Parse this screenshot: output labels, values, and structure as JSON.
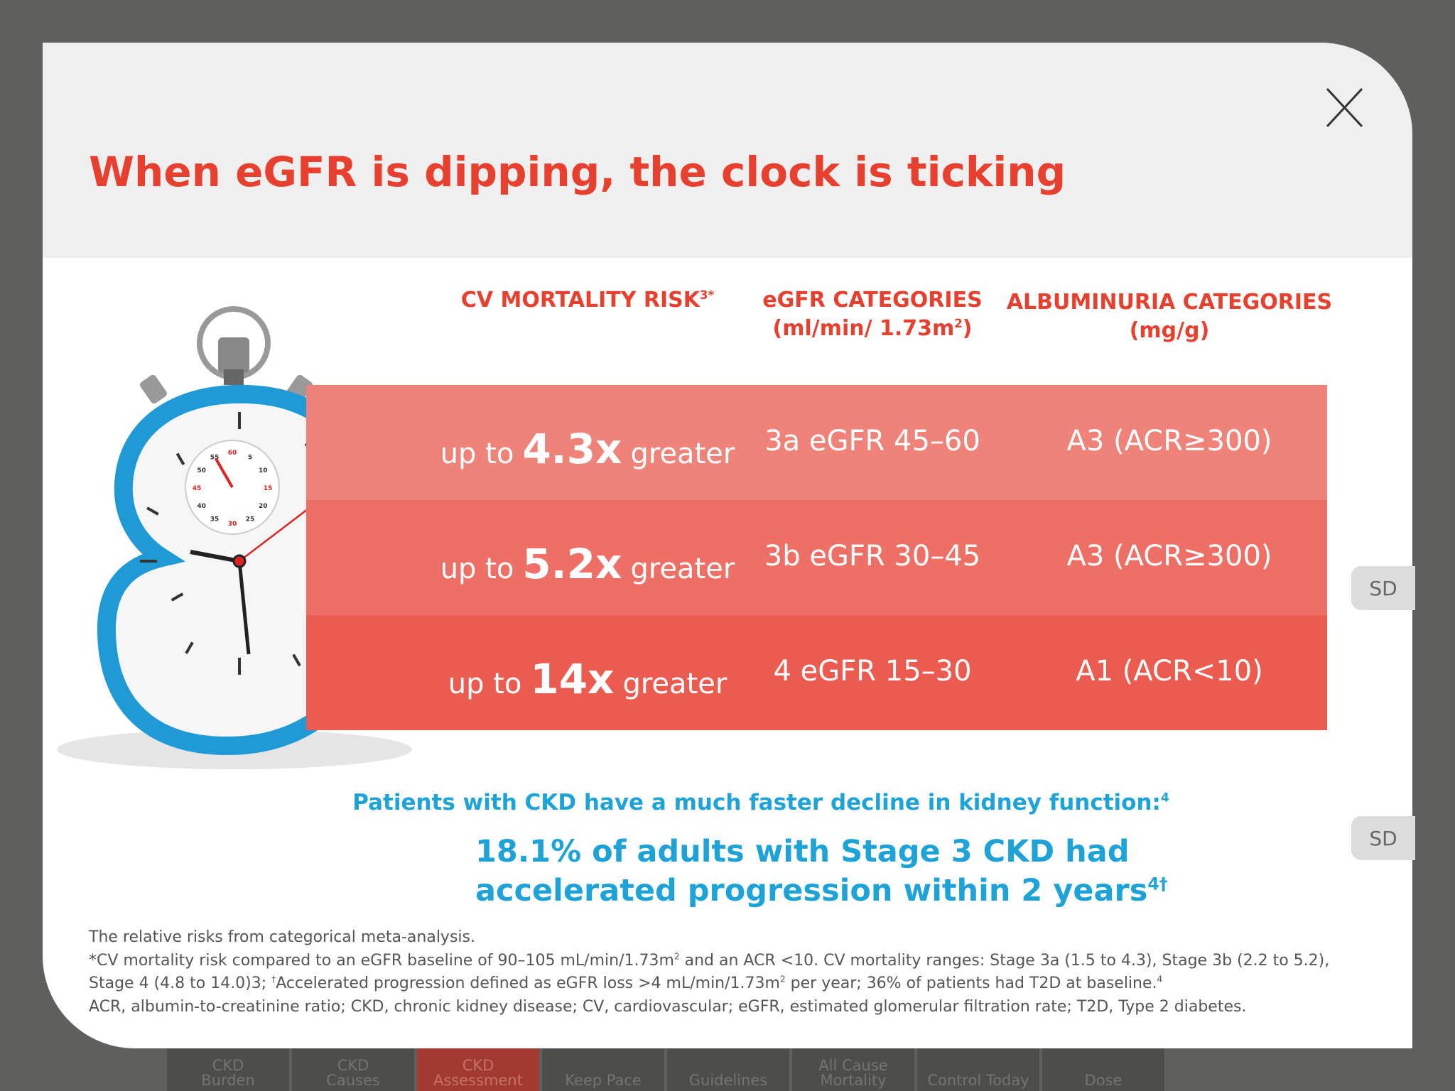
{
  "header": {
    "title": "When eGFR is dipping, the clock is ticking"
  },
  "table": {
    "headers": [
      [
        [
          {
            "text": "CV MORTALITY RISK"
          },
          {
            "sup": "3*"
          }
        ]
      ],
      [
        [
          {
            "text": "eGFR CATEGORIES"
          }
        ],
        [
          {
            "text": "(ml/min/ 1.73m"
          },
          {
            "sup": "2"
          },
          {
            "text": ")"
          }
        ]
      ],
      [
        [
          {
            "text": "ALBUMINURIA CATEGORIES"
          }
        ],
        [
          {
            "text": "(mg/g)"
          }
        ]
      ]
    ],
    "rows": [
      {
        "color": "#ef837a",
        "cells": [
          [
            {
              "text": "up to"
            },
            {
              "big": "4.3x"
            },
            {
              "text": "greater"
            }
          ],
          [
            {
              "text": "3a eGFR 45–60"
            }
          ],
          [
            {
              "text": "A3 (ACR≥300)"
            }
          ]
        ]
      },
      {
        "color": "#ee6f66",
        "cells": [
          [
            {
              "text": "up to"
            },
            {
              "big": "5.2x"
            },
            {
              "text": "greater"
            }
          ],
          [
            {
              "text": "3b eGFR 30–45"
            }
          ],
          [
            {
              "text": "A3 (ACR≥300)"
            }
          ]
        ]
      },
      {
        "color": "#ec5b50",
        "cells": [
          [
            {
              "text": "up to"
            },
            {
              "big": "14x"
            },
            {
              "text": "greater"
            }
          ],
          [
            {
              "text": "4 eGFR 15–30"
            }
          ],
          [
            {
              "text": "A1 (ACR<10)"
            }
          ]
        ]
      }
    ]
  },
  "callout": {
    "lead": [
      [
        {
          "text": "Patients with CKD have a much faster decline in kidney function:"
        },
        {
          "sup": "4"
        }
      ]
    ],
    "stat": [
      [
        {
          "text": "18.1% of adults with Stage 3 CKD had"
        }
      ],
      [
        {
          "text": "accelerated progression within 2 years"
        },
        {
          "sup": "4†"
        }
      ]
    ]
  },
  "footnotes": [
    [
      {
        "text": "The relative risks from categorical meta-analysis."
      }
    ],
    [
      {
        "text": "*CV mortality risk compared to an eGFR baseline of 90–105 mL/min/1.73m"
      },
      {
        "sup": "2"
      },
      {
        "text": " and an ACR <10. CV mortality ranges: Stage 3a (1.5 to 4.3), Stage 3b (2.2 to 5.2),"
      }
    ],
    [
      {
        "text": "Stage 4 (4.8 to 14.0)3; "
      },
      {
        "sup": "†"
      },
      {
        "text": "Accelerated progression defined as eGFR loss >4 mL/min/1.73m"
      },
      {
        "sup": "2"
      },
      {
        "text": " per year; 36% of patients had T2D at baseline."
      },
      {
        "sup": "4"
      }
    ],
    [
      {
        "text": "ACR, albumin-to-creatinine ratio; CKD, chronic kidney disease; CV, cardiovascular; eGFR, estimated glomerular filtration rate; T2D, Type 2 diabetes."
      }
    ]
  ],
  "side_tabs": [
    "SD",
    "SD"
  ],
  "stopwatch": {
    "dial": [
      "60",
      "5",
      "10",
      "15",
      "20",
      "25",
      "30",
      "35",
      "40",
      "45",
      "50",
      "55"
    ]
  },
  "nav": [
    {
      "label": [
        "CKD",
        "Burden"
      ]
    },
    {
      "label": [
        "CKD",
        "Causes"
      ]
    },
    {
      "label": [
        "CKD",
        "Assessment"
      ],
      "active": true
    },
    {
      "label": [
        "Keep Pace"
      ]
    },
    {
      "label": [
        "Guidelines"
      ]
    },
    {
      "label": [
        "All Cause",
        "Mortality"
      ]
    },
    {
      "label": [
        "Control Today"
      ]
    },
    {
      "label": [
        "Dose"
      ]
    }
  ]
}
